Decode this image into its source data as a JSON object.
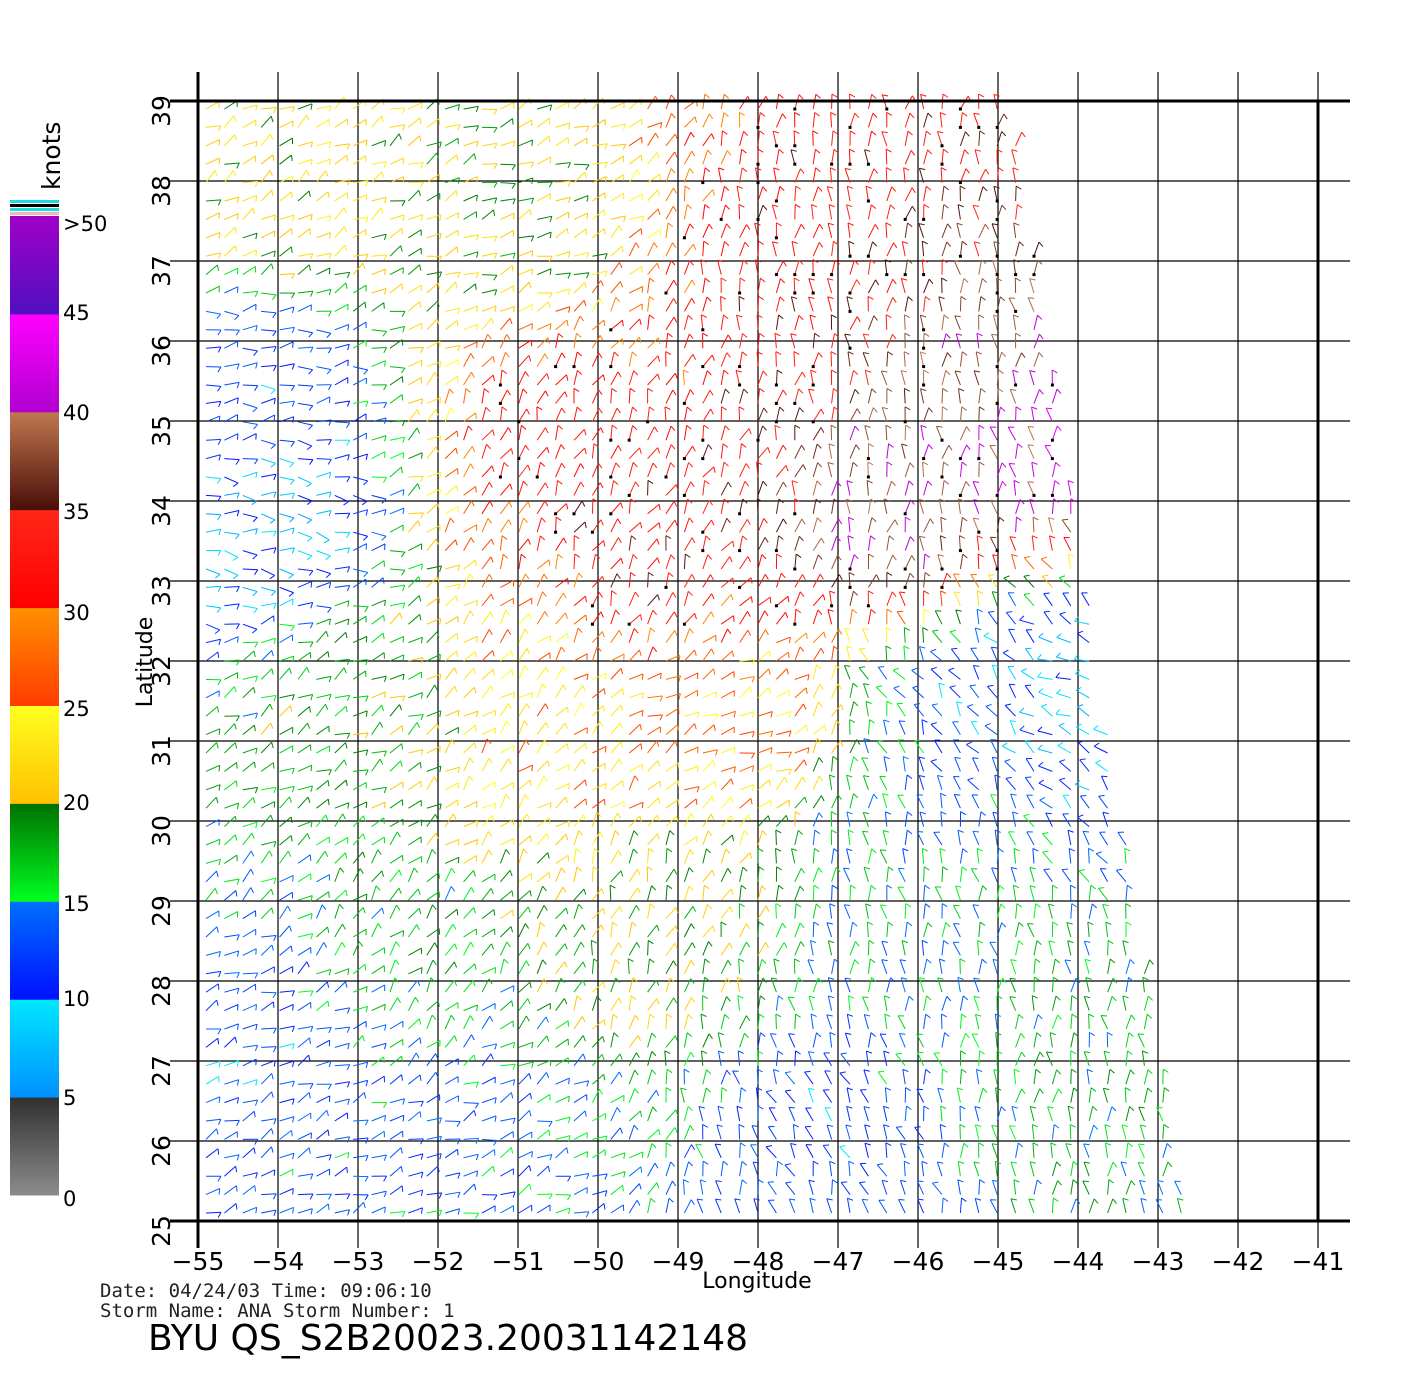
{
  "chart_data": {
    "type": "scatter",
    "subtype": "wind-vector field (scatterometer)",
    "title": "BYU  QS_S2B20023.20031142148",
    "xlabel": "Longitude",
    "ylabel": "Latitude",
    "xlim": [
      -55,
      -41
    ],
    "ylim": [
      25,
      39
    ],
    "x_ticks": [
      "-55",
      "-54",
      "-53",
      "-52",
      "-51",
      "-50",
      "-49",
      "-48",
      "-47",
      "-46",
      "-45",
      "-44",
      "-43",
      "-42",
      "-41"
    ],
    "y_ticks": [
      "25",
      "26",
      "27",
      "28",
      "29",
      "30",
      "31",
      "32",
      "33",
      "34",
      "35",
      "36",
      "37",
      "38",
      "39"
    ],
    "grid": true,
    "swath_corners_lon_lat": [
      [
        -55,
        39
      ],
      [
        -44.8,
        39
      ],
      [
        -42.6,
        25
      ],
      [
        -55,
        25
      ]
    ],
    "wind_speed_regions_knots": [
      {
        "lon": -50.5,
        "lat": 34.8,
        "speed": 33,
        "dir_deg": 20
      },
      {
        "lon": -49.2,
        "lat": 33.2,
        "speed": 34,
        "dir_deg": 25
      },
      {
        "lon": -47.3,
        "lat": 36.8,
        "speed": 33,
        "dir_deg": 5
      },
      {
        "lon": -45.5,
        "lat": 35.5,
        "speed": 38,
        "dir_deg": 0
      },
      {
        "lon": -46.3,
        "lat": 33.6,
        "speed": 40,
        "dir_deg": 10
      },
      {
        "lon": -44.6,
        "lat": 34.5,
        "speed": 42,
        "dir_deg": 355
      },
      {
        "lon": -48.5,
        "lat": 31.2,
        "speed": 26,
        "dir_deg": 70
      },
      {
        "lon": -50.5,
        "lat": 30.8,
        "speed": 24,
        "dir_deg": 45
      },
      {
        "lon": -53.3,
        "lat": 31.5,
        "speed": 18,
        "dir_deg": 60
      },
      {
        "lon": -54.2,
        "lat": 35.4,
        "speed": 12,
        "dir_deg": 85
      },
      {
        "lon": -54.3,
        "lat": 33.7,
        "speed": 8,
        "dir_deg": 100
      },
      {
        "lon": -51.2,
        "lat": 37.4,
        "speed": 20,
        "dir_deg": 70
      },
      {
        "lon": -53.8,
        "lat": 37.8,
        "speed": 22,
        "dir_deg": 60
      },
      {
        "lon": -52.5,
        "lat": 28.3,
        "speed": 17,
        "dir_deg": 40
      },
      {
        "lon": -54,
        "lat": 27.2,
        "speed": 12,
        "dir_deg": 70
      },
      {
        "lon": -49.5,
        "lat": 28.6,
        "speed": 20,
        "dir_deg": 20
      },
      {
        "lon": -46.5,
        "lat": 29.3,
        "speed": 15,
        "dir_deg": 355
      },
      {
        "lon": -45.5,
        "lat": 31.5,
        "speed": 12,
        "dir_deg": 330
      },
      {
        "lon": -44.2,
        "lat": 31.8,
        "speed": 8,
        "dir_deg": 300
      },
      {
        "lon": -47,
        "lat": 25.8,
        "speed": 12,
        "dir_deg": 340
      },
      {
        "lon": -51.5,
        "lat": 25.7,
        "speed": 13,
        "dir_deg": 70
      },
      {
        "lon": -44,
        "lat": 26.5,
        "speed": 17,
        "dir_deg": 0
      }
    ],
    "colorbar": {
      "unit": "knots",
      "labels": [
        ">50",
        "45",
        "40",
        "35",
        "30",
        "25",
        "20",
        "15",
        "10",
        "5",
        "0"
      ],
      "bands": [
        {
          "from": 0,
          "to": 5,
          "top": "#303030",
          "bottom": "#8c8c8c"
        },
        {
          "from": 5,
          "to": 10,
          "top": "#00e8ff",
          "bottom": "#0090ff"
        },
        {
          "from": 10,
          "to": 15,
          "top": "#0070ff",
          "bottom": "#0010ff"
        },
        {
          "from": 15,
          "to": 20,
          "top": "#007000",
          "bottom": "#00ff20"
        },
        {
          "from": 20,
          "to": 25,
          "top": "#ffff20",
          "bottom": "#ffc000"
        },
        {
          "from": 25,
          "to": 30,
          "top": "#ff9000",
          "bottom": "#ff3c00"
        },
        {
          "from": 30,
          "to": 35,
          "top": "#ff2818",
          "bottom": "#ff0000"
        },
        {
          "from": 35,
          "to": 40,
          "top": "#c07850",
          "bottom": "#4a0e08"
        },
        {
          "from": 40,
          "to": 45,
          "top": "#ff00ff",
          "bottom": "#b000d0"
        },
        {
          "from": 45,
          "to": 50,
          "top": "#a000c8",
          "bottom": "#5010c0"
        }
      ]
    },
    "annotations": {
      "date_line": "Date: 04/24/03   Time: 09:06:10",
      "storm_line": "Storm  Name: ANA   Storm  Number: 1"
    }
  }
}
